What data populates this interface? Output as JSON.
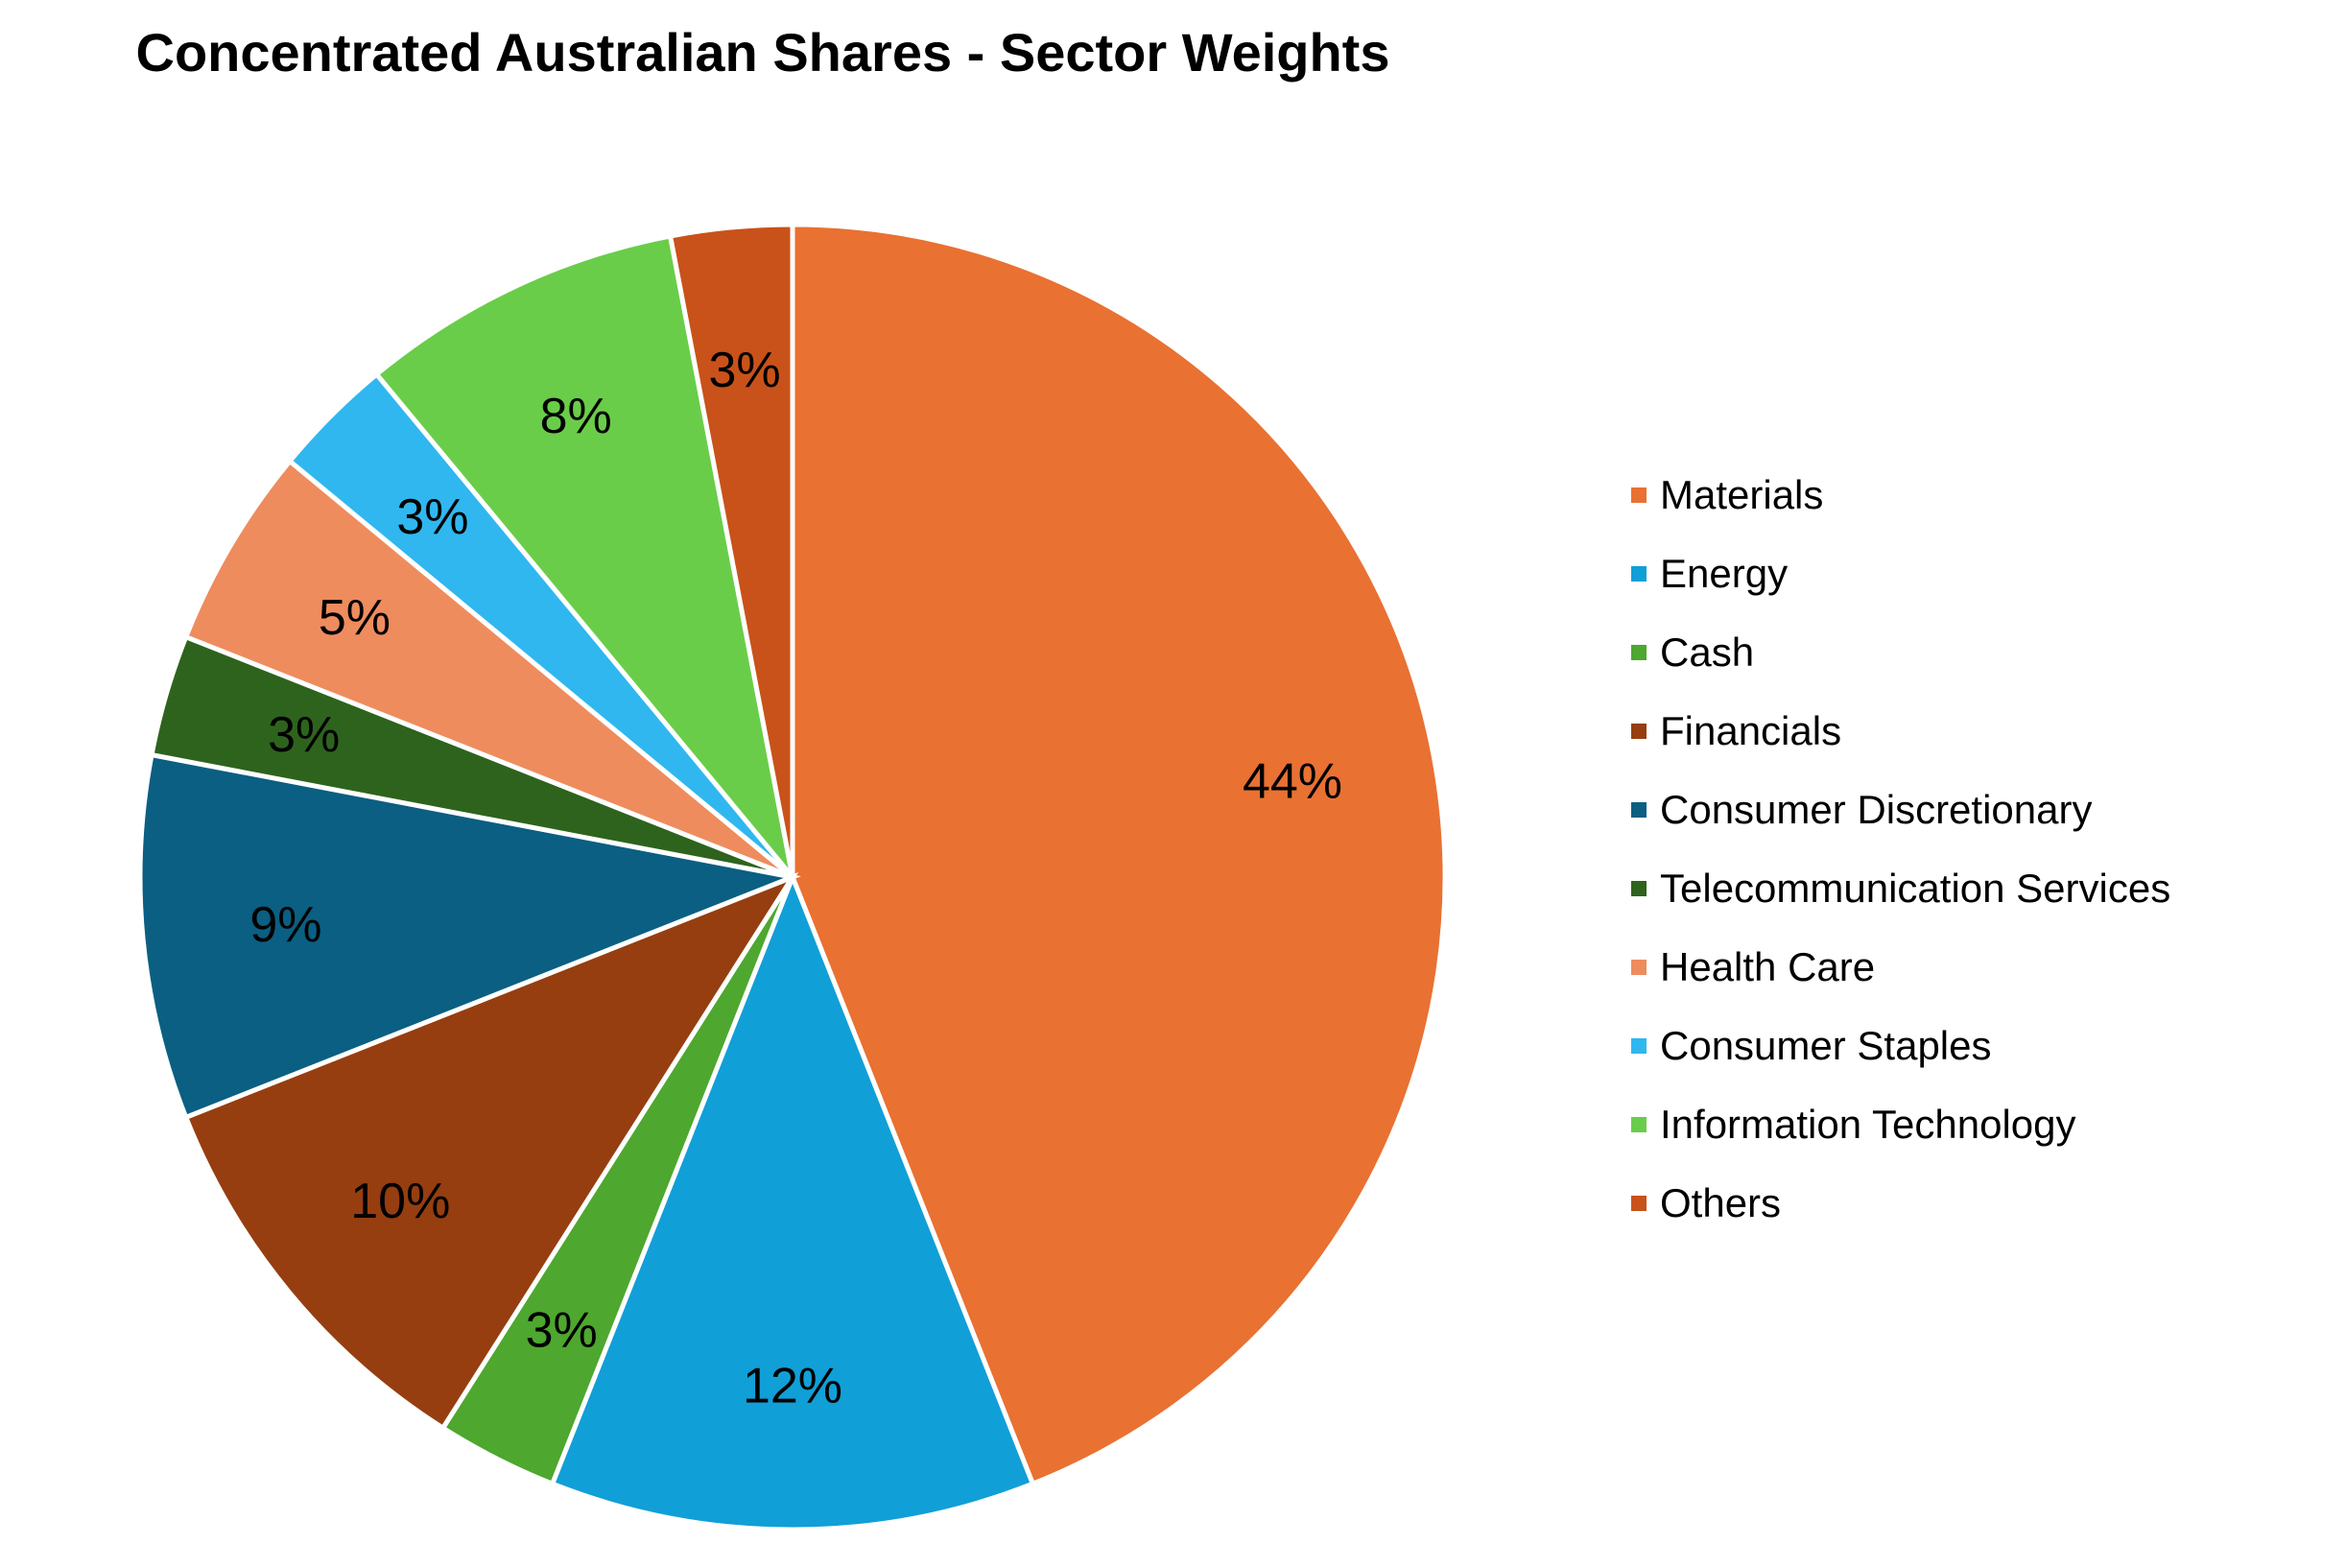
{
  "chart_data": {
    "type": "pie",
    "title": "Concentrated Australian Shares - Sector Weights",
    "legend_position": "right",
    "start_angle_deg": 0,
    "direction": "clockwise",
    "slices": [
      {
        "name": "Materials",
        "value": 44,
        "label": "44%",
        "color": "#E97132"
      },
      {
        "name": "Energy",
        "value": 12,
        "label": "12%",
        "color": "#119FD7"
      },
      {
        "name": "Cash",
        "value": 3,
        "label": "3%",
        "color": "#4EA72E"
      },
      {
        "name": "Financials",
        "value": 10,
        "label": "10%",
        "color": "#963E10"
      },
      {
        "name": "Consumer Discretionary",
        "value": 9,
        "label": "9%",
        "color": "#0A5F82"
      },
      {
        "name": "Telecommunication Services",
        "value": 3,
        "label": "3%",
        "color": "#2E631D"
      },
      {
        "name": "Health Care",
        "value": 5,
        "label": "5%",
        "color": "#EE8C5E"
      },
      {
        "name": "Consumer Staples",
        "value": 3,
        "label": "3%",
        "color": "#30B7EF"
      },
      {
        "name": "Information Technology",
        "value": 8,
        "label": "8%",
        "color": "#6ACD49"
      },
      {
        "name": "Others",
        "value": 3,
        "label": "3%",
        "color": "#C9521A"
      }
    ]
  }
}
